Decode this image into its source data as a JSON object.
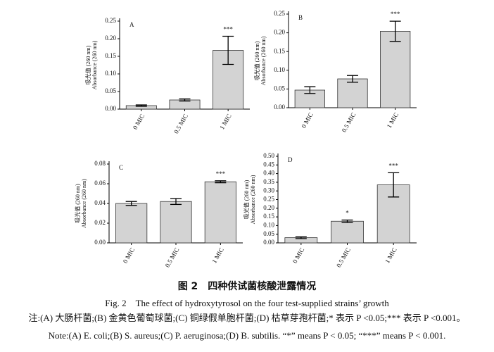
{
  "chart_data": [
    {
      "type": "bar",
      "panel": "A",
      "ylabel": [
        "吸光值 (260 nm)",
        "Absorbance (260 nm)"
      ],
      "categories": [
        "0 MIC",
        "0.5 MIC",
        "1 MIC"
      ],
      "values": [
        0.01,
        0.026,
        0.167
      ],
      "errors": [
        0.002,
        0.003,
        0.04
      ],
      "annotations": [
        null,
        null,
        "***"
      ],
      "color": "#d3d3d3",
      "ylim": [
        0,
        0.25
      ],
      "yticks": [
        {
          "value": 0,
          "label": "0.00"
        },
        0.05,
        {
          "value": 0.1,
          "label": "0.10"
        },
        0.15,
        {
          "value": 0.2,
          "label": "0.20"
        },
        0.25
      ]
    },
    {
      "type": "bar",
      "panel": "B",
      "ylabel": [
        "吸光值 (260 nm)",
        "Absorbance (260 nm)"
      ],
      "categories": [
        "0 MIC",
        "0.5 MIC",
        "1 MIC"
      ],
      "values": [
        0.047,
        0.077,
        0.204
      ],
      "errors": [
        0.009,
        0.009,
        0.027
      ],
      "annotations": [
        null,
        null,
        "***"
      ],
      "color": "#d3d3d3",
      "ylim": [
        0,
        0.25
      ],
      "yticks": [
        {
          "value": 0,
          "label": "0.00"
        },
        0.05,
        {
          "value": 0.1,
          "label": "0.10"
        },
        0.15,
        {
          "value": 0.2,
          "label": "0.20"
        },
        0.25
      ]
    },
    {
      "type": "bar",
      "panel": "C",
      "ylabel": [
        "吸光值 (260 nm)",
        "Absorbance (260 nm)"
      ],
      "categories": [
        "0 MIC",
        "0.5 MIC",
        "1 MIC"
      ],
      "values": [
        0.04,
        0.042,
        0.062
      ],
      "errors": [
        0.002,
        0.003,
        0.001
      ],
      "annotations": [
        null,
        null,
        "***"
      ],
      "color": "#d3d3d3",
      "ylim": [
        0,
        0.08
      ],
      "yticks": [
        {
          "value": 0,
          "label": "0.00"
        },
        0.02,
        0.04,
        0.06,
        0.08
      ]
    },
    {
      "type": "bar",
      "panel": "D",
      "ylabel": [
        "吸光值 (260 nm)",
        "Absorbance (260 nm)"
      ],
      "categories": [
        "0 MIC",
        "0.5 MIC",
        "1 MIC"
      ],
      "values": [
        0.03,
        0.125,
        0.335
      ],
      "errors": [
        0.005,
        0.007,
        0.07
      ],
      "annotations": [
        null,
        "*",
        "***"
      ],
      "color": "#d3d3d3",
      "ylim": [
        0,
        0.5
      ],
      "yticks": [
        {
          "value": 0,
          "label": "0.00"
        },
        0.05,
        {
          "value": 0.1,
          "label": "0.10"
        },
        0.15,
        {
          "value": 0.2,
          "label": "0.20"
        },
        0.25,
        {
          "value": 0.3,
          "label": "0.30"
        },
        0.35,
        {
          "value": 0.4,
          "label": "0.40"
        },
        0.45,
        {
          "value": 0.5,
          "label": "0.50"
        }
      ]
    }
  ],
  "caption": {
    "title_zh": "图 2　四种供试菌核酸泄露情况",
    "title_en": "Fig. 2　The effect of hydroxytyrosol on the four test-supplied strains’ growth",
    "note_zh": "注:(A) 大肠杆菌;(B) 金黄色葡萄球菌;(C) 铜绿假单胞杆菌;(D) 枯草芽孢杆菌;* 表示 P <0.05;*** 表示 P <0.001。",
    "note_en": "Note:(A) E. coli;(B) S. aureus;(C) P. aeruginosa;(D) B. subtilis. “*” means P < 0.05; “***” means P < 0.001."
  }
}
